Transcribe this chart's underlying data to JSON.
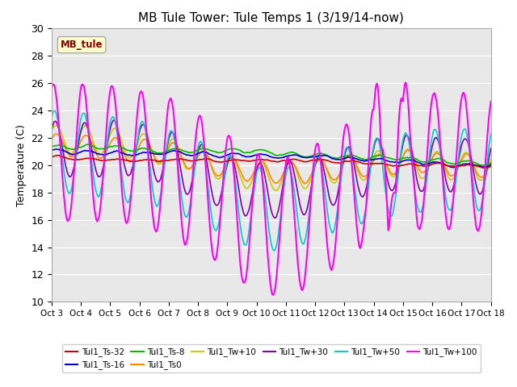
{
  "title": "MB Tule Tower: Tule Temps 1 (3/19/14-now)",
  "ylabel": "Temperature (C)",
  "ylim": [
    10,
    30
  ],
  "yticks": [
    10,
    12,
    14,
    16,
    18,
    20,
    22,
    24,
    26,
    28,
    30
  ],
  "plot_bg": "#e8e8e8",
  "label_box_text": "MB_tule",
  "label_box_color": "#ffffcc",
  "label_box_edge": "#aaaaaa",
  "series": {
    "Tul1_Ts-32": {
      "color": "#cc0000",
      "lw": 1.2
    },
    "Tul1_Ts-16": {
      "color": "#0000cc",
      "lw": 1.2
    },
    "Tul1_Ts-8": {
      "color": "#00bb00",
      "lw": 1.2
    },
    "Tul1_Ts0": {
      "color": "#ff8800",
      "lw": 1.2
    },
    "Tul1_Tw+10": {
      "color": "#cccc00",
      "lw": 1.2
    },
    "Tul1_Tw+30": {
      "color": "#8800aa",
      "lw": 1.2
    },
    "Tul1_Tw+50": {
      "color": "#00cccc",
      "lw": 1.2
    },
    "Tul1_Tw+100": {
      "color": "#ff00ff",
      "lw": 1.5
    }
  },
  "xtick_labels": [
    "Oct 3",
    "Oct 4",
    "Oct 5",
    "Oct 6",
    "Oct 7",
    "Oct 8",
    "Oct 9",
    "Oct 10",
    "Oct 11",
    "Oct 12",
    "Oct 13",
    "Oct 14",
    "Oct 15",
    "Oct 16",
    "Oct 17",
    "Oct 18"
  ],
  "n_days": 15,
  "pts_per_day": 48
}
